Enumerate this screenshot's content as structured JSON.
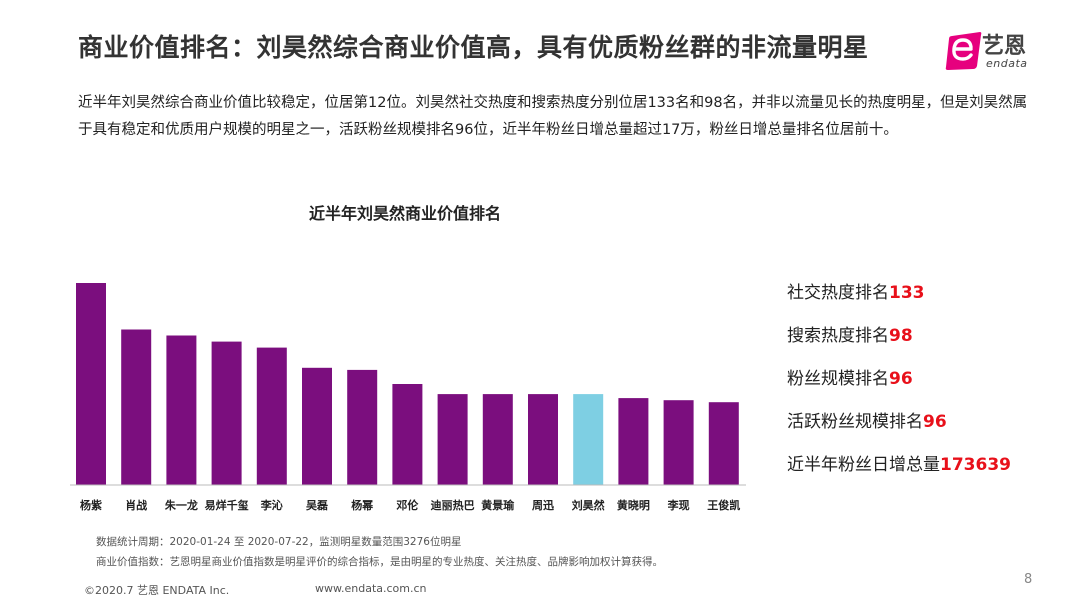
{
  "header": {
    "title": "商业价值排名：刘昊然综合商业价值高，具有优质粉丝群的非流量明星",
    "logo_cn": "艺恩",
    "logo_en": "endata"
  },
  "intro": "近半年刘昊然综合商业价值比较稳定，位居第12位。刘昊然社交热度和搜索热度分别位居133名和98名，并非以流量见长的热度明星，但是刘昊然属于具有稳定和优质用户规模的明星之一，活跃粉丝规模排名96位，近半年粉丝日增总量超过17万，粉丝日增总量排名位居前十。",
  "chart_data": {
    "type": "bar",
    "title": "近半年刘昊然商业价值排名",
    "categories": [
      "杨紫",
      "肖战",
      "朱一龙",
      "易烊千玺",
      "李沁",
      "吴磊",
      "杨幂",
      "邓伦",
      "迪丽热巴",
      "黄景瑜",
      "周迅",
      "刘昊然",
      "黄晓明",
      "李现",
      "王俊凯"
    ],
    "values": [
      100,
      77,
      74,
      71,
      68,
      58,
      57,
      50,
      45,
      45,
      45,
      45,
      43,
      42,
      41
    ],
    "highlight": "刘昊然",
    "colors": {
      "bar": "#7b0e7e",
      "highlight": "#7ecfe3"
    },
    "grid": false
  },
  "stats": [
    {
      "label": "社交热度排名",
      "value": "133"
    },
    {
      "label": "搜索热度排名",
      "value": "98"
    },
    {
      "label": "粉丝规模排名",
      "value": "96"
    },
    {
      "label": "活跃粉丝规模排名",
      "value": "96"
    },
    {
      "label": "近半年粉丝日增总量",
      "value": "173639"
    }
  ],
  "footnotes": [
    "数据统计周期：2020-01-24 至 2020-07-22，监测明星数量范围3276位明星",
    "商业价值指数：艺恩明星商业价值指数是明星评价的综合指标，是由明星的专业热度、关注热度、品牌影响加权计算获得。"
  ],
  "footer": {
    "copyright": "©2020.7 艺恩 ENDATA Inc.",
    "site": "www.endata.com.cn",
    "page": "8"
  }
}
